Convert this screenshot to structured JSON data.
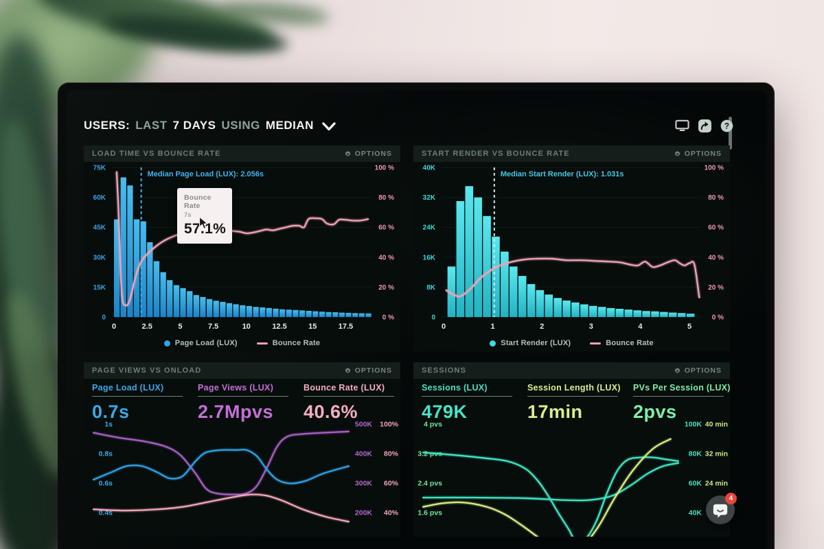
{
  "header": {
    "segments": [
      {
        "text": "USERS:"
      },
      {
        "text": "LAST"
      },
      {
        "text": "7 DAYS"
      },
      {
        "text": "USING"
      },
      {
        "text": "MEDIAN"
      }
    ],
    "toolbar_icons": [
      "display-icon",
      "share-icon",
      "help-icon"
    ]
  },
  "panels": [
    {
      "title": "LOAD TIME VS BOUNCE RATE",
      "options_label": "OPTIONS"
    },
    {
      "title": "START RENDER VS BOUNCE RATE",
      "options_label": "OPTIONS"
    },
    {
      "title": "PAGE VIEWS VS ONLOAD",
      "options_label": "OPTIONS"
    },
    {
      "title": "SESSIONS",
      "options_label": "OPTIONS"
    }
  ],
  "floating": {
    "chat_badge": "4"
  },
  "colors": {
    "blue": "#2fa5e4",
    "cyan": "#3fd9e2",
    "pink": "#f2a2b8",
    "purple": "#a75ec4",
    "teal": "#3ee3c0",
    "yellow_green": "#d9ec82",
    "green": "#6fe79d"
  },
  "chart_data": [
    {
      "id": "load-time-vs-bounce-rate",
      "type": "histogram+line",
      "x_max": 19.5,
      "x_ticks": [
        {
          "v": 0,
          "label": "0"
        },
        {
          "v": 2.5,
          "label": "2.5"
        },
        {
          "v": 5,
          "label": "5"
        },
        {
          "v": 7.5,
          "label": "7.5"
        },
        {
          "v": 10,
          "label": "10"
        },
        {
          "v": 12.5,
          "label": "12.5"
        },
        {
          "v": 15,
          "label": "15"
        },
        {
          "v": 17.5,
          "label": "17.5"
        }
      ],
      "y_left": {
        "max": 75,
        "unit": "K sessions",
        "ticks": [
          "75K",
          "60K",
          "45K",
          "30K",
          "15K",
          "0"
        ],
        "color": "#38a2e2"
      },
      "y_right": {
        "max": 100,
        "ticks": [
          "100 %",
          "80 %",
          "60 %",
          "40 %",
          "20 %",
          "0 %"
        ],
        "color": "#f295b1"
      },
      "bars": {
        "name": "Page Load (LUX)",
        "start": 0,
        "end": 19.5,
        "color_top": "#49bcee",
        "color_bottom": "#1b84c8",
        "values": [
          49,
          70,
          66,
          49,
          48,
          37.5,
          28,
          22.5,
          18.5,
          16,
          14.5,
          13,
          11,
          10,
          9,
          8.2,
          7.6,
          7,
          6.4,
          5.9,
          5.5,
          5.1,
          4.8,
          4.5,
          4.2,
          3.9,
          3.7,
          3.5,
          3.3,
          3.1,
          2.9,
          2.7,
          2.5,
          2.4,
          2.2,
          2.1,
          2,
          1.9,
          1.8
        ]
      },
      "line": {
        "name": "Bounce Rate",
        "color": "#f2a2b8",
        "points": [
          [
            0.2,
            97
          ],
          [
            0.35,
            70
          ],
          [
            0.5,
            30
          ],
          [
            0.65,
            11
          ],
          [
            0.85,
            8
          ],
          [
            1.05,
            8.5
          ],
          [
            1.25,
            13
          ],
          [
            1.55,
            24
          ],
          [
            1.85,
            33
          ],
          [
            2.15,
            38.5
          ],
          [
            2.45,
            41.5
          ],
          [
            2.8,
            44.5
          ],
          [
            3.2,
            47.5
          ],
          [
            3.6,
            50
          ],
          [
            4,
            52
          ],
          [
            4.5,
            54
          ],
          [
            5,
            55.5
          ],
          [
            5.5,
            56.5
          ],
          [
            6,
            57
          ],
          [
            6.5,
            57.5
          ],
          [
            7,
            57.5
          ],
          [
            7.5,
            58
          ],
          [
            8,
            58
          ],
          [
            8.5,
            58
          ],
          [
            9,
            57.5
          ],
          [
            9.5,
            57
          ],
          [
            10,
            56
          ],
          [
            10.5,
            56.5
          ],
          [
            11,
            57.5
          ],
          [
            11.5,
            58.5
          ],
          [
            12,
            58
          ],
          [
            12.5,
            59
          ],
          [
            13,
            60
          ],
          [
            13.5,
            61
          ],
          [
            14,
            61
          ],
          [
            14.35,
            60
          ],
          [
            14.7,
            65.5
          ],
          [
            15.2,
            66
          ],
          [
            15.7,
            65.5
          ],
          [
            16.1,
            62.5
          ],
          [
            16.6,
            62
          ],
          [
            17,
            65
          ],
          [
            17.5,
            65
          ],
          [
            18,
            64.5
          ],
          [
            18.6,
            64.5
          ],
          [
            19.2,
            65.5
          ]
        ]
      },
      "median": {
        "label": "Median Page Load (LUX): 2.056s",
        "value": 2.056,
        "line_color": "#3fb4ec",
        "label_color": "#3fb4ec"
      },
      "tooltip": {
        "title": "Bounce Rate",
        "subtitle": "7s",
        "value": "57.1%"
      },
      "legend": [
        {
          "label": "Page Load (LUX)",
          "marker": "dot",
          "color": "#2fa5e4"
        },
        {
          "label": "Bounce Rate",
          "marker": "line",
          "color": "#f2a2b8"
        }
      ]
    },
    {
      "id": "start-render-vs-bounce-rate",
      "type": "histogram+line",
      "x_max": 5.25,
      "x_ticks": [
        {
          "v": 0,
          "label": "0"
        },
        {
          "v": 1,
          "label": "1"
        },
        {
          "v": 2,
          "label": "2"
        },
        {
          "v": 3,
          "label": "3"
        },
        {
          "v": 4,
          "label": "4"
        },
        {
          "v": 5,
          "label": "5"
        }
      ],
      "y_left": {
        "max": 40,
        "unit": "K sessions",
        "ticks": [
          "40K",
          "32K",
          "24K",
          "16K",
          "8K",
          "0"
        ],
        "color": "#3fd6d6"
      },
      "y_right": {
        "max": 100,
        "ticks": [
          "100 %",
          "80 %",
          "60 %",
          "40 %",
          "20 %",
          "0 %"
        ],
        "color": "#f295b1"
      },
      "bars": {
        "name": "Start Render (LUX)",
        "start": 0.08,
        "end": 5.12,
        "color_top": "#5ae7ee",
        "color_bottom": "#22b2c2",
        "values": [
          13.5,
          31,
          35,
          32,
          27,
          21.5,
          17.5,
          13.5,
          11,
          8.8,
          7.2,
          6,
          5.1,
          4.4,
          3.9,
          3.4,
          3,
          2.7,
          2.4,
          2.2,
          2,
          1.8,
          1.6,
          1.5,
          1.35,
          1.2,
          1.05,
          0.9
        ]
      },
      "line": {
        "name": "Bounce Rate",
        "color": "#f2a2b8",
        "points": [
          [
            0.05,
            18
          ],
          [
            0.2,
            15
          ],
          [
            0.35,
            14
          ],
          [
            0.55,
            19
          ],
          [
            0.75,
            26
          ],
          [
            0.95,
            31
          ],
          [
            1.15,
            34.5
          ],
          [
            1.4,
            37
          ],
          [
            1.65,
            38.5
          ],
          [
            1.9,
            39
          ],
          [
            2.2,
            39
          ],
          [
            2.5,
            38
          ],
          [
            2.8,
            38
          ],
          [
            3.1,
            37.5
          ],
          [
            3.4,
            37
          ],
          [
            3.6,
            36.5
          ],
          [
            3.8,
            35
          ],
          [
            3.95,
            34.5
          ],
          [
            4.1,
            37
          ],
          [
            4.25,
            33.5
          ],
          [
            4.4,
            34.5
          ],
          [
            4.55,
            36.5
          ],
          [
            4.7,
            38
          ],
          [
            4.8,
            36
          ],
          [
            4.9,
            34.5
          ],
          [
            5,
            36
          ],
          [
            5.1,
            35
          ],
          [
            5.2,
            13
          ]
        ]
      },
      "median": {
        "label": "Median Start Render (LUX): 1.031s",
        "value": 1.031,
        "line_color": "#cfe9ea",
        "label_color": "#46c8e2"
      },
      "legend": [
        {
          "label": "Start Render (LUX)",
          "marker": "dot",
          "color": "#3fd9e2"
        },
        {
          "label": "Bounce Rate",
          "marker": "line",
          "color": "#f2a2b8"
        }
      ]
    },
    {
      "id": "page-views-vs-onload",
      "type": "lines",
      "metrics": [
        {
          "label": "Page Load (LUX)",
          "value": "0.7s",
          "color": "#3ba8e8"
        },
        {
          "label": "Page Views (LUX)",
          "value": "2.7Mpvs",
          "color": "#c46fd8"
        },
        {
          "label": "Bounce Rate (LUX)",
          "value": "40.6%",
          "color": "#f5aec3"
        }
      ],
      "row_fracs": [
        0.1,
        0.34,
        0.577,
        0.817
      ],
      "y_left": {
        "ticks": [
          "1s",
          "0.8s",
          "0.6s",
          "0.4s"
        ],
        "color": "#3ba8e8"
      },
      "y_right": {
        "col1": {
          "ticks": [
            "500K",
            "400K",
            "300K",
            "200K"
          ],
          "color": "#b168c8"
        },
        "col2": {
          "ticks": [
            "100%",
            "80%",
            "60%",
            "40%"
          ],
          "color": "#f2a0b8"
        }
      },
      "series": [
        {
          "name": "Page Views",
          "color": "#a75ec4",
          "points": [
            [
              0,
              0.17
            ],
            [
              0.1,
              0.21
            ],
            [
              0.2,
              0.24
            ],
            [
              0.28,
              0.28
            ],
            [
              0.34,
              0.35
            ],
            [
              0.4,
              0.5
            ],
            [
              0.44,
              0.62
            ],
            [
              0.48,
              0.66
            ],
            [
              0.55,
              0.67
            ],
            [
              0.6,
              0.66
            ],
            [
              0.64,
              0.6
            ],
            [
              0.68,
              0.45
            ],
            [
              0.72,
              0.28
            ],
            [
              0.76,
              0.2
            ],
            [
              0.82,
              0.18
            ],
            [
              0.9,
              0.17
            ],
            [
              1,
              0.16
            ]
          ]
        },
        {
          "name": "Page Load",
          "color": "#2f9fe2",
          "points": [
            [
              0,
              0.55
            ],
            [
              0.07,
              0.49
            ],
            [
              0.13,
              0.44
            ],
            [
              0.19,
              0.44
            ],
            [
              0.25,
              0.49
            ],
            [
              0.3,
              0.54
            ],
            [
              0.35,
              0.52
            ],
            [
              0.4,
              0.4
            ],
            [
              0.44,
              0.33
            ],
            [
              0.5,
              0.31
            ],
            [
              0.56,
              0.31
            ],
            [
              0.6,
              0.31
            ],
            [
              0.64,
              0.36
            ],
            [
              0.68,
              0.47
            ],
            [
              0.72,
              0.55
            ],
            [
              0.77,
              0.58
            ],
            [
              0.83,
              0.56
            ],
            [
              0.9,
              0.5
            ],
            [
              1,
              0.44
            ]
          ]
        },
        {
          "name": "Bounce Rate",
          "color": "#f2a6ba",
          "points": [
            [
              0,
              0.79
            ],
            [
              0.12,
              0.8
            ],
            [
              0.25,
              0.79
            ],
            [
              0.35,
              0.77
            ],
            [
              0.45,
              0.73
            ],
            [
              0.55,
              0.69
            ],
            [
              0.62,
              0.67
            ],
            [
              0.68,
              0.68
            ],
            [
              0.74,
              0.72
            ],
            [
              0.82,
              0.79
            ],
            [
              0.91,
              0.85
            ],
            [
              1,
              0.89
            ]
          ]
        }
      ]
    },
    {
      "id": "sessions",
      "type": "lines",
      "metrics": [
        {
          "label": "Sessions (LUX)",
          "value": "479K",
          "color": "#49e2c6"
        },
        {
          "label": "Session Length (LUX)",
          "value": "17min",
          "color": "#dcee8e"
        },
        {
          "label": "PVs Per Session (LUX)",
          "value": "2pvs",
          "color": "#7eeea8"
        }
      ],
      "row_fracs": [
        0.1,
        0.34,
        0.577,
        0.817
      ],
      "y_left": {
        "ticks": [
          "4 pvs",
          "3.2 pvs",
          "2.4 pvs",
          "1.6 pvs"
        ],
        "color": "#6fe79d"
      },
      "y_right": {
        "col1": {
          "ticks": [
            "100K",
            "80K",
            "60K",
            "40K"
          ],
          "color": "#45e0c2"
        },
        "col2": {
          "ticks": [
            "40 min",
            "32 min",
            "24 min",
            ""
          ],
          "color": "#cbe87e"
        }
      },
      "series": [
        {
          "name": "Sessions",
          "color": "#3ee3c0",
          "points": [
            [
              0,
              0.33
            ],
            [
              0.12,
              0.35
            ],
            [
              0.24,
              0.375
            ],
            [
              0.33,
              0.4
            ],
            [
              0.4,
              0.46
            ],
            [
              0.45,
              0.56
            ],
            [
              0.49,
              0.68
            ],
            [
              0.53,
              0.82
            ],
            [
              0.57,
              0.95
            ],
            [
              0.6,
              1.05
            ],
            [
              0.64,
              1.02
            ],
            [
              0.68,
              0.88
            ],
            [
              0.72,
              0.66
            ],
            [
              0.76,
              0.48
            ],
            [
              0.8,
              0.39
            ],
            [
              0.85,
              0.37
            ],
            [
              0.9,
              0.37
            ],
            [
              0.95,
              0.385
            ],
            [
              1,
              0.4
            ]
          ]
        },
        {
          "name": "PVs Per Session",
          "color": "#3ee3c0",
          "points": [
            [
              0,
              0.695
            ],
            [
              0.2,
              0.695
            ],
            [
              0.4,
              0.7
            ],
            [
              0.55,
              0.715
            ],
            [
              0.65,
              0.715
            ],
            [
              0.74,
              0.68
            ],
            [
              0.81,
              0.6
            ],
            [
              0.88,
              0.5
            ],
            [
              0.94,
              0.44
            ],
            [
              1,
              0.415
            ]
          ]
        },
        {
          "name": "Session Length",
          "color": "#d9ec82",
          "points": [
            [
              0,
              0.77
            ],
            [
              0.08,
              0.74
            ],
            [
              0.16,
              0.735
            ],
            [
              0.25,
              0.77
            ],
            [
              0.32,
              0.83
            ],
            [
              0.38,
              0.91
            ],
            [
              0.44,
              1
            ],
            [
              0.5,
              1.1
            ],
            [
              0.56,
              1.16
            ],
            [
              0.6,
              1.15
            ],
            [
              0.68,
              0.95
            ],
            [
              0.75,
              0.7
            ],
            [
              0.82,
              0.48
            ],
            [
              0.9,
              0.3
            ],
            [
              0.97,
              0.22
            ]
          ]
        }
      ]
    }
  ]
}
